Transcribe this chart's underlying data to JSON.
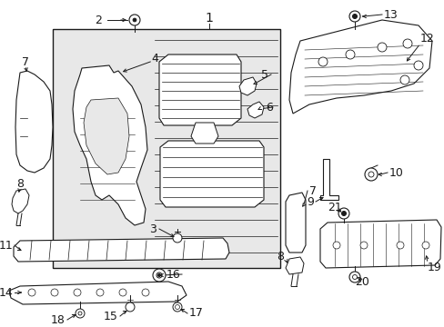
{
  "bg_color": "#ffffff",
  "lc": "#1a1a1a",
  "fill_main": "#e8e8e8",
  "fill_white": "#ffffff",
  "fig_w": 4.89,
  "fig_h": 3.6,
  "dpi": 100
}
